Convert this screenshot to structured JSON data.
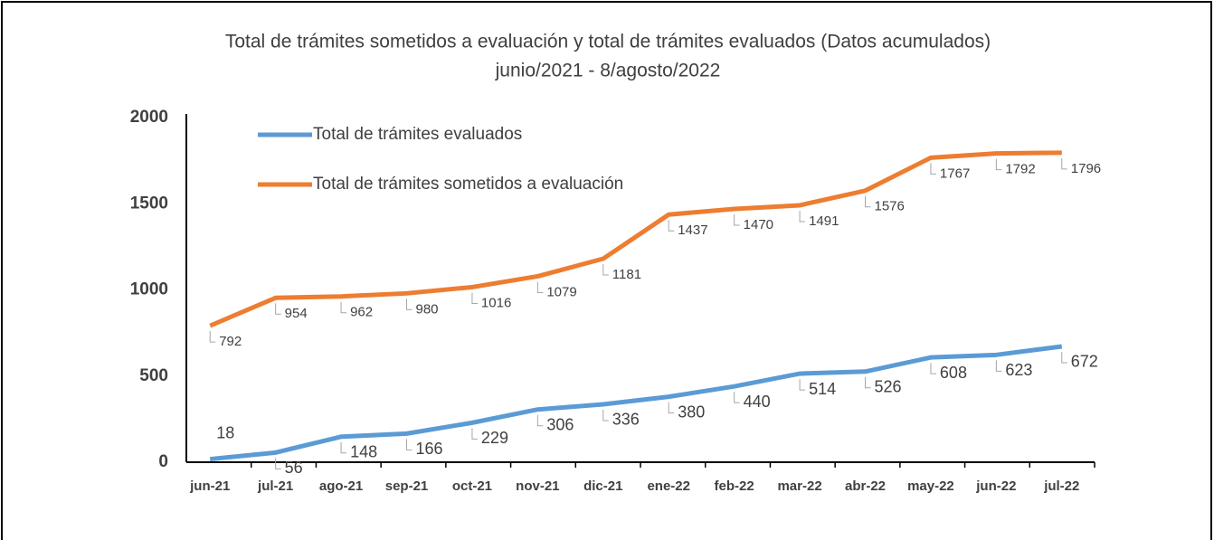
{
  "chart_data": {
    "type": "line",
    "title": "Total de trámites sometidos a evaluación y total de trámites evaluados (Datos acumulados)",
    "subtitle": "junio/2021 - 8/agosto/2022",
    "categories": [
      "jun-21",
      "jul-21",
      "ago-21",
      "sep-21",
      "oct-21",
      "nov-21",
      "dic-21",
      "ene-22",
      "feb-22",
      "mar-22",
      "abr-22",
      "may-22",
      "jun-22",
      "jul-22"
    ],
    "series": [
      {
        "name": "Total de trámites evaluados",
        "color": "#5b9bd5",
        "values": [
          18,
          56,
          148,
          166,
          229,
          306,
          336,
          380,
          440,
          514,
          526,
          608,
          623,
          672
        ]
      },
      {
        "name": "Total de trámites sometidos a evaluación",
        "color": "#ed7d31",
        "values": [
          792,
          954,
          962,
          980,
          1016,
          1079,
          1181,
          1437,
          1470,
          1491,
          1576,
          1767,
          1792,
          1796
        ]
      }
    ],
    "ylim": [
      0,
      2000
    ],
    "yticks": [
      0,
      500,
      1000,
      1500,
      2000
    ],
    "grid": false,
    "legend": "upper left"
  }
}
